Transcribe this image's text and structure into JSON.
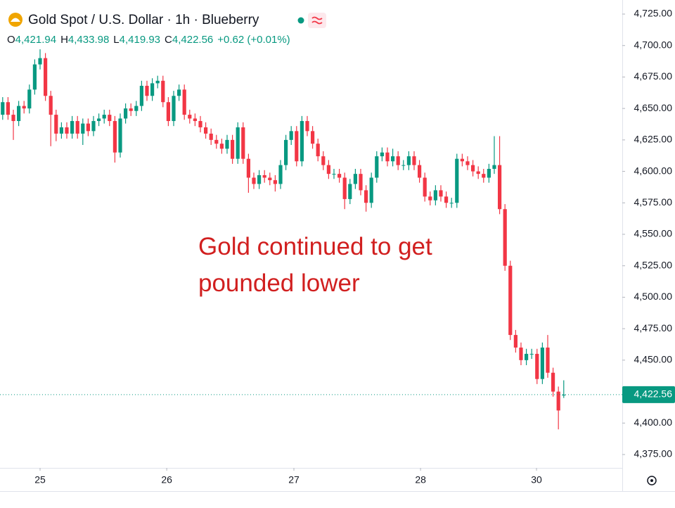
{
  "chart_data": {
    "type": "candlestick",
    "title": "Gold Spot / U.S. Dollar · 1h · Blueberry",
    "ohlc_header": [
      {
        "prefix": "O",
        "text": "4,421.94"
      },
      {
        "prefix": "H",
        "text": "4,433.98"
      },
      {
        "prefix": "L",
        "text": "4,419.93"
      },
      {
        "prefix": "C",
        "text": "4,422.56"
      }
    ],
    "change": "+0.62 (+0.01%)",
    "annotation": [
      "Gold continued to get",
      "pounded lower"
    ],
    "up_color": "#089981",
    "down_color": "#f23645",
    "last_price": {
      "value": 4422.56,
      "label": "4,422.56"
    },
    "ylim": [
      4375,
      4725
    ],
    "yticks": [
      {
        "value": 4375,
        "label": "4,375.00"
      },
      {
        "value": 4400,
        "label": "4,400.00"
      },
      {
        "value": 4450,
        "label": "4,450.00"
      },
      {
        "value": 4475,
        "label": "4,475.00"
      },
      {
        "value": 4500,
        "label": "4,500.00"
      },
      {
        "value": 4525,
        "label": "4,525.00"
      },
      {
        "value": 4550,
        "label": "4,550.00"
      },
      {
        "value": 4575,
        "label": "4,575.00"
      },
      {
        "value": 4600,
        "label": "4,600.00"
      },
      {
        "value": 4625,
        "label": "4,625.00"
      },
      {
        "value": 4650,
        "label": "4,650.00"
      },
      {
        "value": 4675,
        "label": "4,675.00"
      },
      {
        "value": 4700,
        "label": "4,700.00"
      },
      {
        "value": 4725,
        "label": "4,725.00"
      }
    ],
    "xlim": [
      -0.5,
      115.95
    ],
    "xticks": [
      {
        "value": 7,
        "label": "25"
      },
      {
        "value": 30.7,
        "label": "26"
      },
      {
        "value": 54.5,
        "label": "27"
      },
      {
        "value": 78.2,
        "label": "28"
      },
      {
        "value": 99.9,
        "label": "30"
      }
    ],
    "open": [
      4645,
      4655,
      4645,
      4640,
      4652,
      4650,
      4665,
      4685,
      4690,
      4660,
      4645,
      4630,
      4635,
      4630,
      4640,
      4630,
      4638,
      4632,
      4640,
      4642,
      4645,
      4640,
      4615,
      4642,
      4650,
      4648,
      4652,
      4668,
      4660,
      4670,
      4672,
      4655,
      4640,
      4660,
      4665,
      4645,
      4642,
      4640,
      4635,
      4630,
      4625,
      4622,
      4618,
      4625,
      4610,
      4635,
      4610,
      4595,
      4590,
      4597,
      4595,
      4593,
      4590,
      4605,
      4625,
      4632,
      4608,
      4640,
      4632,
      4622,
      4612,
      4605,
      4598,
      4598,
      4595,
      4578,
      4590,
      4598,
      4585,
      4575,
      4595,
      4612,
      4615,
      4608,
      4612,
      4605,
      4605,
      4612,
      4605,
      4595,
      4580,
      4577,
      4585,
      4580,
      4575,
      4575,
      4610,
      4608,
      4605,
      4600,
      4598,
      4595,
      4602,
      4605,
      4570,
      4525,
      4470,
      4460,
      4450,
      4455,
      4455,
      4435,
      4460,
      4440,
      4425,
      4421.94
    ],
    "high": [
      4659,
      4659,
      4649,
      4656,
      4656,
      4669,
      4689,
      4697,
      4694,
      4664,
      4649,
      4639,
      4639,
      4644,
      4644,
      4642,
      4642,
      4644,
      4646,
      4649,
      4649,
      4644,
      4646,
      4654,
      4654,
      4656,
      4672,
      4672,
      4674,
      4676,
      4676,
      4659,
      4664,
      4669,
      4669,
      4649,
      4646,
      4644,
      4639,
      4634,
      4629,
      4626,
      4629,
      4629,
      4639,
      4639,
      4614,
      4599,
      4601,
      4601,
      4599,
      4597,
      4609,
      4629,
      4636,
      4636,
      4644,
      4644,
      4636,
      4626,
      4616,
      4609,
      4602,
      4602,
      4599,
      4594,
      4602,
      4602,
      4589,
      4599,
      4616,
      4619,
      4619,
      4618,
      4616,
      4609,
      4616,
      4616,
      4609,
      4599,
      4584,
      4589,
      4589,
      4584,
      4579,
      4614,
      4614,
      4612,
      4609,
      4604,
      4602,
      4606,
      4628,
      4628,
      4574,
      4529,
      4474,
      4464,
      4459,
      4459,
      4459,
      4464,
      4470,
      4444,
      4429,
      4433.98
    ],
    "low": [
      4641,
      4641,
      4625,
      4636,
      4646,
      4646,
      4661,
      4681,
      4656,
      4620,
      4624,
      4626,
      4626,
      4626,
      4626,
      4621,
      4628,
      4628,
      4636,
      4638,
      4636,
      4607,
      4611,
      4638,
      4644,
      4644,
      4648,
      4656,
      4656,
      4666,
      4651,
      4636,
      4636,
      4656,
      4641,
      4638,
      4636,
      4631,
      4626,
      4621,
      4618,
      4614,
      4614,
      4606,
      4606,
      4606,
      4583,
      4586,
      4586,
      4591,
      4589,
      4584,
      4586,
      4601,
      4621,
      4604,
      4604,
      4628,
      4618,
      4608,
      4601,
      4594,
      4594,
      4591,
      4570,
      4574,
      4586,
      4581,
      4568,
      4571,
      4591,
      4608,
      4604,
      4604,
      4601,
      4601,
      4601,
      4601,
      4591,
      4576,
      4573,
      4573,
      4576,
      4571,
      4571,
      4571,
      4604,
      4601,
      4596,
      4594,
      4591,
      4591,
      4598,
      4566,
      4521,
      4466,
      4456,
      4446,
      4446,
      4451,
      4431,
      4431,
      4436,
      4421,
      4395,
      4419.93
    ],
    "close": [
      4655,
      4645,
      4640,
      4652,
      4650,
      4665,
      4685,
      4690,
      4660,
      4645,
      4630,
      4635,
      4630,
      4640,
      4630,
      4638,
      4632,
      4640,
      4642,
      4645,
      4640,
      4615,
      4642,
      4650,
      4648,
      4652,
      4668,
      4660,
      4670,
      4672,
      4655,
      4640,
      4660,
      4665,
      4645,
      4642,
      4640,
      4635,
      4630,
      4625,
      4622,
      4618,
      4625,
      4610,
      4635,
      4610,
      4595,
      4590,
      4597,
      4595,
      4593,
      4590,
      4605,
      4625,
      4632,
      4608,
      4640,
      4632,
      4622,
      4612,
      4605,
      4598,
      4598,
      4595,
      4578,
      4590,
      4598,
      4585,
      4575,
      4595,
      4612,
      4615,
      4608,
      4612,
      4605,
      4605,
      4612,
      4605,
      4595,
      4580,
      4577,
      4585,
      4580,
      4575,
      4575,
      4610,
      4608,
      4605,
      4600,
      4598,
      4595,
      4602,
      4605,
      4570,
      4525,
      4470,
      4460,
      4450,
      4455,
      4455,
      4435,
      4460,
      4440,
      4425,
      4410,
      4422.56
    ]
  }
}
